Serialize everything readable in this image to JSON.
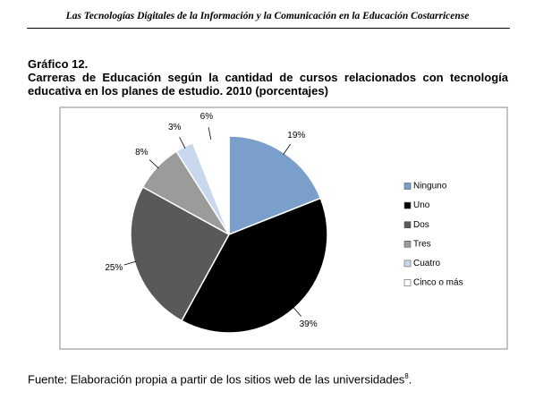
{
  "header": {
    "title": "Las Tecnologías Digitales de la Información y la Comunicación en la Educación Costarricense"
  },
  "figure": {
    "number": "Gráfico 12.",
    "caption": "Carreras de Educación según la cantidad de cursos relacionados con tecnología educativa en los planes de estudio. 2010 (porcentajes)"
  },
  "chart_data": {
    "type": "pie",
    "categories": [
      "Ninguno",
      "Uno",
      "Dos",
      "Tres",
      "Cuatro",
      "Cinco o más"
    ],
    "values": [
      19,
      39,
      25,
      8,
      3,
      6
    ],
    "value_labels": [
      "19%",
      "39%",
      "25%",
      "8%",
      "3%",
      "6%"
    ],
    "colors": [
      "#7b9fcb",
      "#000000",
      "#595959",
      "#9b9b9b",
      "#c9d8ee",
      "#ffffff"
    ],
    "legend": "right"
  },
  "source": {
    "text": "Fuente: Elaboración propia a partir de los sitios web de las universidades",
    "note": "8"
  }
}
